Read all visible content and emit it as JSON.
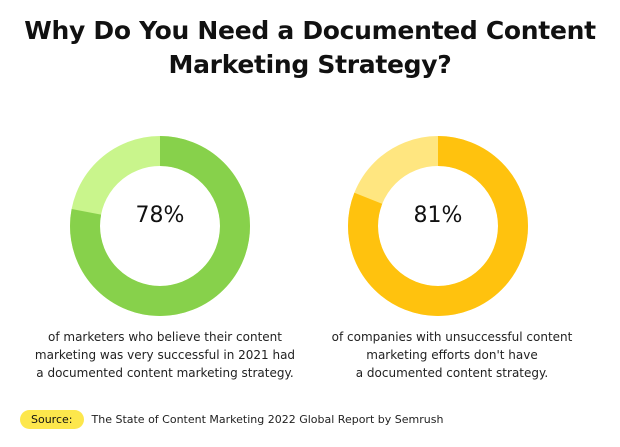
{
  "title": {
    "line1": "Why Do You Need a Documented Content",
    "line2": "Marketing Strategy?"
  },
  "chart_data": [
    {
      "type": "pie",
      "value": 78,
      "label": "78%",
      "caption_lines": [
        "of marketers who believe their content",
        "marketing was very successful in 2021 had",
        "a documented content marketing strategy."
      ],
      "colors": {
        "filled": "#87d14b",
        "remaining": "#c9f58c"
      }
    },
    {
      "type": "pie",
      "value": 81,
      "label": "81%",
      "caption_lines": [
        "of companies with unsuccessful content",
        "marketing efforts don't have",
        "a documented content strategy."
      ],
      "colors": {
        "filled": "#ffc20e",
        "remaining": "#ffe680"
      }
    }
  ],
  "footer": {
    "badge": "Source:",
    "text": "The State of Content Marketing 2022 Global Report by Semrush"
  }
}
